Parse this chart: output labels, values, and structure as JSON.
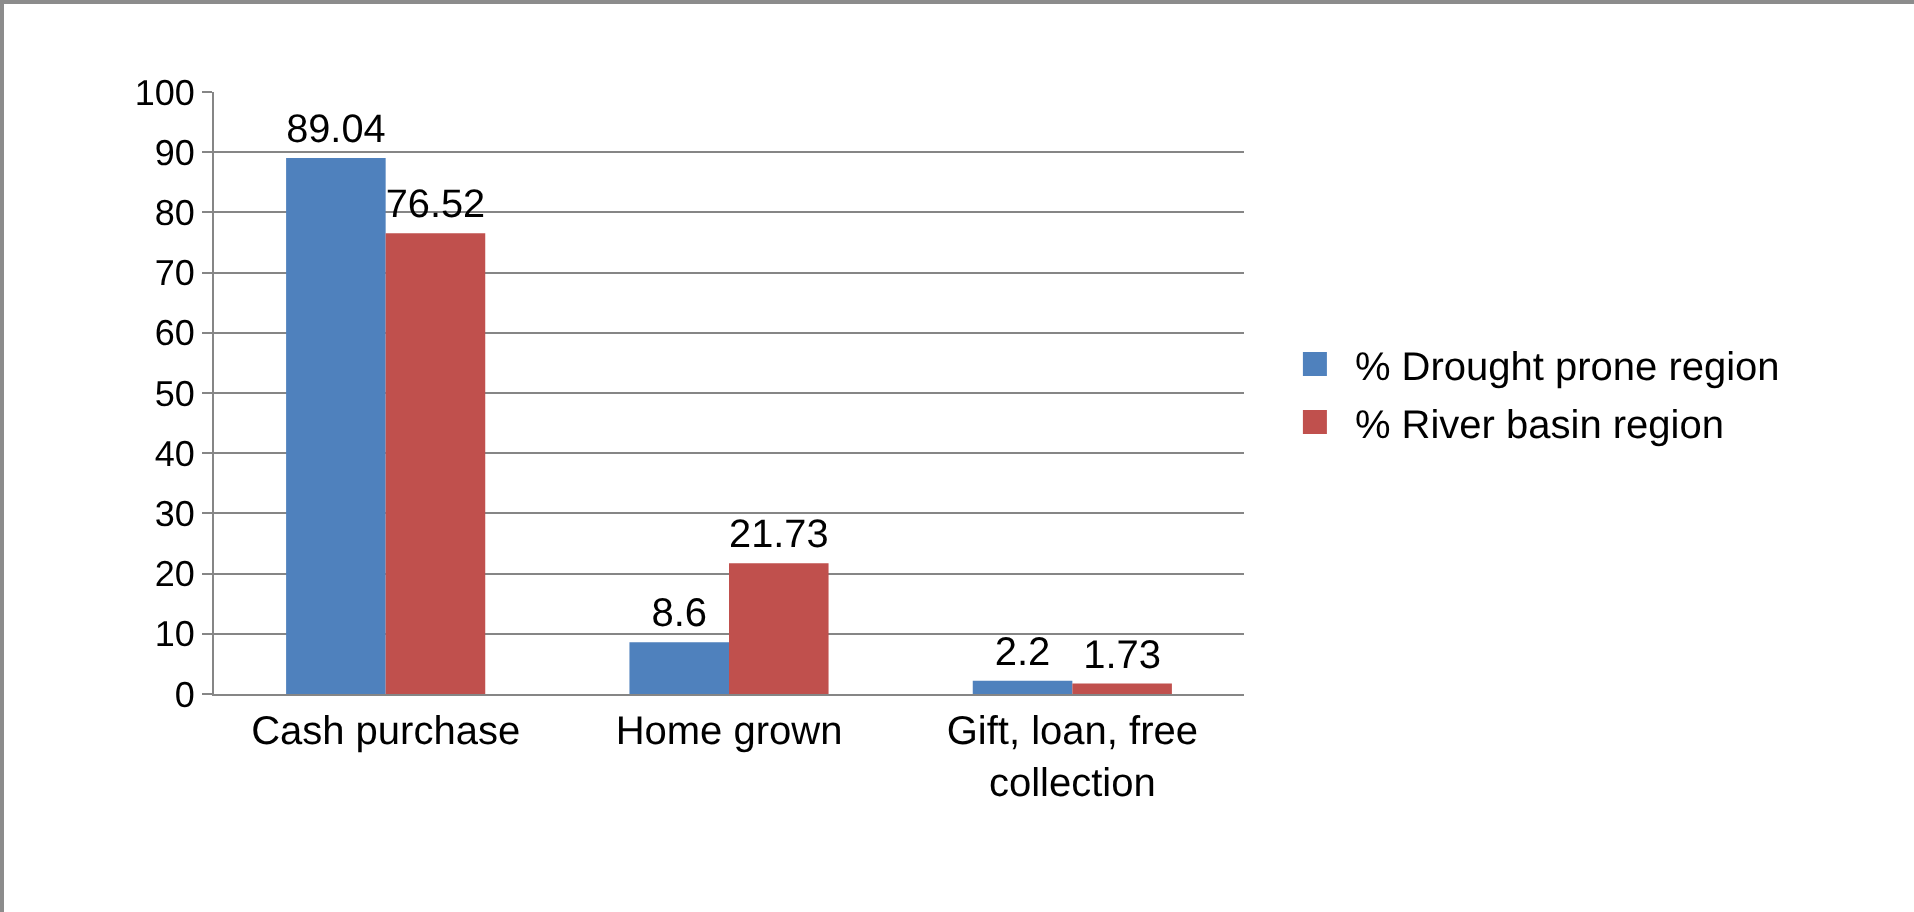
{
  "chart_data": {
    "type": "bar",
    "categories": [
      "Cash purchase",
      "Home grown",
      "Gift, loan, free collection"
    ],
    "series": [
      {
        "name": "% Drought prone region",
        "color": "#4f81bd",
        "values": [
          89.04,
          8.6,
          2.2
        ]
      },
      {
        "name": "% River basin region",
        "color": "#c0504d",
        "values": [
          76.52,
          21.73,
          1.73
        ]
      }
    ],
    "ylim": [
      0,
      100
    ],
    "yticks": [
      0,
      10,
      20,
      30,
      40,
      50,
      60,
      70,
      80,
      90,
      100
    ],
    "grid": "y",
    "legend": "right",
    "data_labels": true
  }
}
